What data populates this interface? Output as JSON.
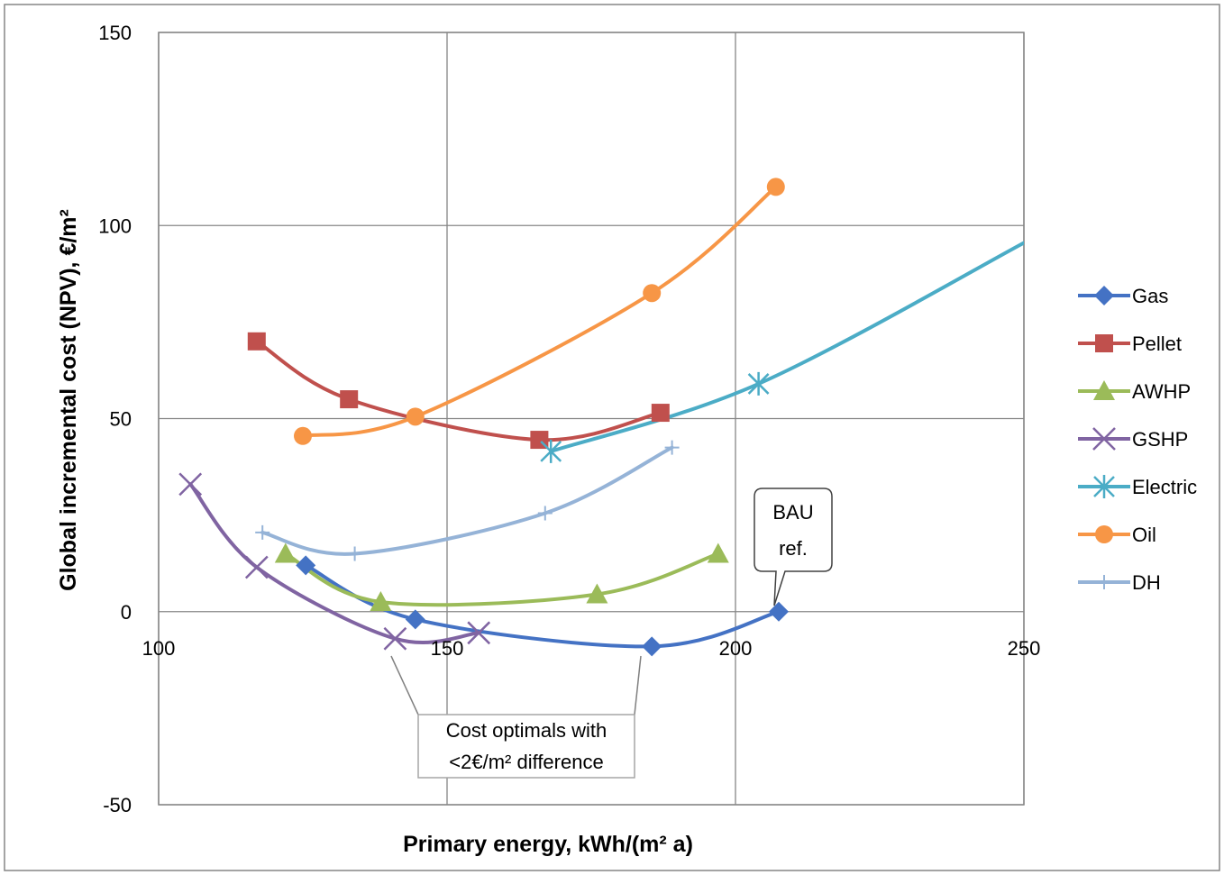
{
  "chart_data": {
    "type": "scatter",
    "xlabel": "Primary energy, kWh/(m² a)",
    "ylabel": "Global incremental cost (NPV), €/m²",
    "xlim": [
      100,
      250
    ],
    "ylim": [
      -50,
      150
    ],
    "x_ticks": [
      "100",
      "150",
      "200",
      "250"
    ],
    "y_ticks": [
      "150",
      "100",
      "50",
      "0",
      "-50"
    ],
    "grid": true,
    "legend_position": "right",
    "series": [
      {
        "name": "Gas",
        "color": "#4472C4",
        "marker": "diamond",
        "x": [
          125.5,
          144.5,
          185.5,
          207.5
        ],
        "y": [
          12,
          -2,
          -9,
          0
        ]
      },
      {
        "name": "Pellet",
        "color": "#C0504D",
        "marker": "square",
        "x": [
          117,
          133,
          166,
          187
        ],
        "y": [
          70,
          55,
          44.5,
          51.5
        ]
      },
      {
        "name": "AWHP",
        "color": "#9BBB59",
        "marker": "triangle",
        "x": [
          122,
          138.5,
          176,
          197
        ],
        "y": [
          15,
          2.5,
          4.5,
          15
        ]
      },
      {
        "name": "GSHP",
        "color": "#8064A2",
        "marker": "x",
        "x": [
          105.5,
          117,
          141,
          155.5
        ],
        "y": [
          33,
          11.5,
          -7,
          -5.5
        ]
      },
      {
        "name": "Electric",
        "color": "#4BACC6",
        "marker": "asterisk",
        "x": [
          168,
          204,
          250
        ],
        "y": [
          41.5,
          59,
          95.5
        ]
      },
      {
        "name": "Oil",
        "color": "#F79646",
        "marker": "circle",
        "x": [
          125,
          144.5,
          185.5,
          207
        ],
        "y": [
          45.5,
          50.5,
          82.5,
          110
        ]
      },
      {
        "name": "DH",
        "color": "#95B3D7",
        "marker": "plus",
        "x": [
          118,
          134,
          167,
          189
        ],
        "y": [
          20.5,
          15,
          25.5,
          42.5
        ]
      }
    ],
    "annotations": [
      {
        "text": "BAU ref.",
        "lines": [
          "BAU",
          "ref."
        ]
      },
      {
        "text": "Cost optimals with <2€/m² difference",
        "lines": [
          "Cost optimals with",
          "<2€/m² difference"
        ]
      }
    ]
  }
}
